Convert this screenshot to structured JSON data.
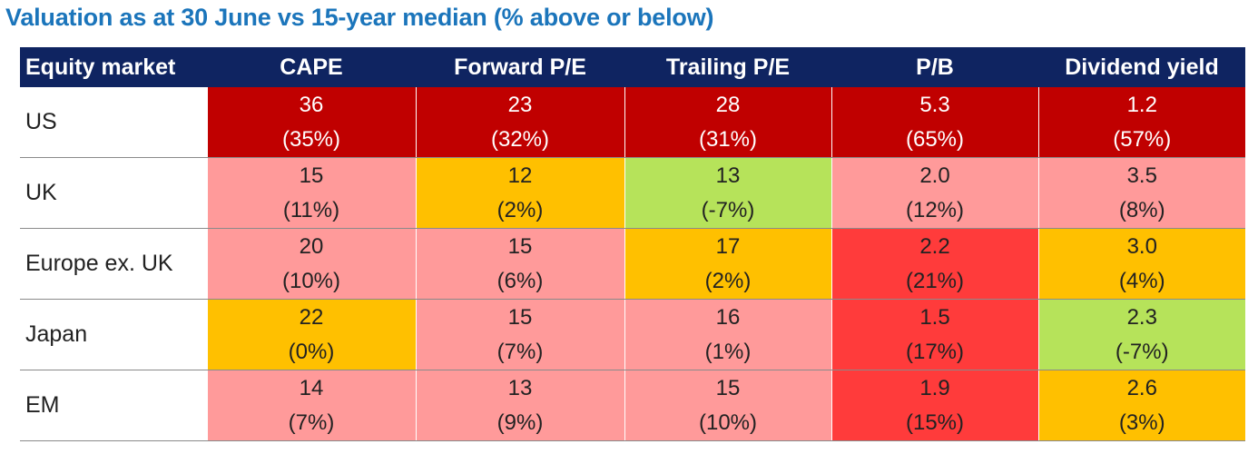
{
  "title": "Valuation as at 30 June vs 15-year median (% above or below)",
  "colors": {
    "header_bg": "#0f2461",
    "title": "#1b75bb",
    "dark_red": "#c00000",
    "red": "#ff3b3b",
    "pink": "#ff9a9a",
    "amber": "#ffc000",
    "green": "#b6e35a"
  },
  "chart_data": {
    "type": "table",
    "title": "Valuation as at 30 June vs 15-year median (% above or below)",
    "columns": [
      "Equity market",
      "CAPE",
      "Forward P/E",
      "Trailing P/E",
      "P/B",
      "Dividend yield"
    ],
    "rows": [
      {
        "market": "US",
        "cells": [
          {
            "value": "36",
            "pct": "(35%)",
            "color": "dark_red"
          },
          {
            "value": "23",
            "pct": "(32%)",
            "color": "dark_red"
          },
          {
            "value": "28",
            "pct": "(31%)",
            "color": "dark_red"
          },
          {
            "value": "5.3",
            "pct": "(65%)",
            "color": "dark_red"
          },
          {
            "value": "1.2",
            "pct": "(57%)",
            "color": "dark_red"
          }
        ]
      },
      {
        "market": "UK",
        "cells": [
          {
            "value": "15",
            "pct": "(11%)",
            "color": "pink"
          },
          {
            "value": "12",
            "pct": "(2%)",
            "color": "amber"
          },
          {
            "value": "13",
            "pct": "(-7%)",
            "color": "green"
          },
          {
            "value": "2.0",
            "pct": "(12%)",
            "color": "pink"
          },
          {
            "value": "3.5",
            "pct": "(8%)",
            "color": "pink"
          }
        ]
      },
      {
        "market": "Europe ex. UK",
        "cells": [
          {
            "value": "20",
            "pct": "(10%)",
            "color": "pink"
          },
          {
            "value": "15",
            "pct": "(6%)",
            "color": "pink"
          },
          {
            "value": "17",
            "pct": "(2%)",
            "color": "amber"
          },
          {
            "value": "2.2",
            "pct": "(21%)",
            "color": "red"
          },
          {
            "value": "3.0",
            "pct": "(4%)",
            "color": "amber"
          }
        ]
      },
      {
        "market": "Japan",
        "cells": [
          {
            "value": "22",
            "pct": "(0%)",
            "color": "amber"
          },
          {
            "value": "15",
            "pct": "(7%)",
            "color": "pink"
          },
          {
            "value": "16",
            "pct": "(1%)",
            "color": "pink"
          },
          {
            "value": "1.5",
            "pct": "(17%)",
            "color": "red"
          },
          {
            "value": "2.3",
            "pct": "(-7%)",
            "color": "green"
          }
        ]
      },
      {
        "market": "EM",
        "cells": [
          {
            "value": "14",
            "pct": "(7%)",
            "color": "pink"
          },
          {
            "value": "13",
            "pct": "(9%)",
            "color": "pink"
          },
          {
            "value": "15",
            "pct": "(10%)",
            "color": "pink"
          },
          {
            "value": "1.9",
            "pct": "(15%)",
            "color": "red"
          },
          {
            "value": "2.6",
            "pct": "(3%)",
            "color": "amber"
          }
        ]
      }
    ]
  }
}
